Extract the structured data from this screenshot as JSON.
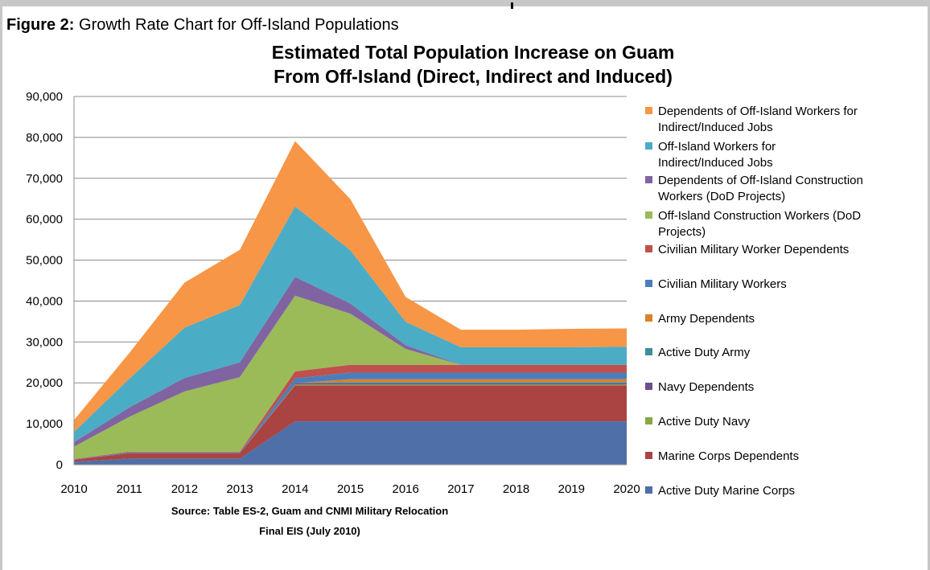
{
  "figure": {
    "label": "Figure 2:",
    "caption": "Growth Rate Chart for  Off-Island Populations"
  },
  "source": {
    "line1": "Source:  Table ES-2, Guam and CNMI Military Relocation",
    "line2": "Final EIS (July 2010)"
  },
  "chart_data": {
    "type": "area",
    "stacked": true,
    "title_lines": [
      "Estimated Total Population Increase on Guam",
      "From Off-Island (Direct, Indirect and Induced)"
    ],
    "xlabel": "",
    "ylabel": "",
    "x": [
      "2010",
      "2011",
      "2012",
      "2013",
      "2014",
      "2015",
      "2016",
      "2017",
      "2018",
      "2019",
      "2020"
    ],
    "ylim": [
      0,
      90000
    ],
    "yticks": [
      0,
      10000,
      20000,
      30000,
      40000,
      50000,
      60000,
      70000,
      80000,
      90000
    ],
    "ytick_labels": [
      "0",
      "10,000",
      "20,000",
      "30,000",
      "40,000",
      "50,000",
      "60,000",
      "70,000",
      "80,000",
      "90,000"
    ],
    "grid": true,
    "legend_position": "right",
    "series": [
      {
        "name": "Active Duty Marine Corps",
        "color": "#4f6fa8",
        "values": [
          700,
          1500,
          1500,
          1500,
          10600,
          10600,
          10600,
          10600,
          10600,
          10600,
          10600
        ]
      },
      {
        "name": "Marine Corps Dependents",
        "color": "#a94442",
        "values": [
          500,
          1300,
          1300,
          1300,
          8800,
          8800,
          8800,
          8800,
          8800,
          8800,
          8800
        ]
      },
      {
        "name": "Active Duty Navy",
        "color": "#86a846",
        "values": [
          0,
          0,
          0,
          0,
          200,
          200,
          200,
          200,
          200,
          200,
          200
        ]
      },
      {
        "name": "Navy Dependents",
        "color": "#6a4f8f",
        "values": [
          0,
          0,
          0,
          0,
          300,
          300,
          300,
          300,
          300,
          300,
          300
        ]
      },
      {
        "name": "Active Duty Army",
        "color": "#3e8c9c",
        "values": [
          0,
          0,
          0,
          0,
          0,
          300,
          300,
          300,
          300,
          300,
          300
        ]
      },
      {
        "name": "Army Dependents",
        "color": "#d9822b",
        "values": [
          0,
          0,
          0,
          0,
          0,
          700,
          700,
          700,
          700,
          700,
          700
        ]
      },
      {
        "name": "Civilian Military Workers",
        "color": "#4a7ebb",
        "values": [
          100,
          200,
          200,
          200,
          1200,
          1600,
          1600,
          1600,
          1600,
          1600,
          1600
        ]
      },
      {
        "name": "Civilian Military Worker Dependents",
        "color": "#c0504d",
        "values": [
          100,
          200,
          200,
          200,
          1700,
          1900,
          1900,
          1900,
          1900,
          1900,
          1900
        ]
      },
      {
        "name": "Off-Island Construction Workers (DoD Projects)",
        "color": "#9bbb59",
        "values": [
          3000,
          8500,
          14700,
          18200,
          18500,
          12500,
          3900,
          0,
          0,
          0,
          0
        ]
      },
      {
        "name": "Dependents of Off-Island Construction Workers (DoD Projects)",
        "color": "#8064a2",
        "values": [
          1100,
          2300,
          3300,
          3600,
          4600,
          2500,
          900,
          0,
          0,
          0,
          0
        ]
      },
      {
        "name": "Off-Island Workers for Indirect/Induced Jobs",
        "color": "#4bacc6",
        "values": [
          2500,
          7000,
          12300,
          14000,
          17200,
          13000,
          5700,
          4300,
          4300,
          4300,
          4400
        ]
      },
      {
        "name": "Dependents of Off-Island Workers for Indirect/Induced Jobs",
        "color": "#f79646",
        "values": [
          2900,
          6300,
          11000,
          13500,
          16000,
          12500,
          6100,
          4300,
          4300,
          4500,
          4500
        ]
      }
    ]
  }
}
